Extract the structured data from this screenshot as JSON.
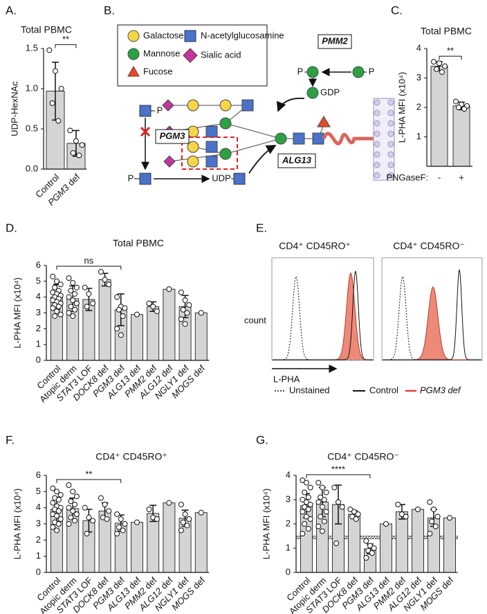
{
  "chart_data": [
    {
      "type": "bar",
      "panel": "A.",
      "title": "Total PBMC",
      "ylabel": "UDP-HexNAc",
      "categories": [
        "Control",
        "PGM3 def"
      ],
      "values": [
        0.97,
        0.32
      ],
      "errors": [
        0.36,
        0.16
      ],
      "points": [
        [
          1.48,
          1.22,
          1.0,
          0.82,
          0.6
        ],
        [
          0.48,
          0.35,
          0.3,
          0.2,
          0.17
        ]
      ],
      "ylim": [
        0,
        1.5
      ],
      "yticks": [
        {
          "value": 0,
          "label": "0.0"
        },
        {
          "value": 0.5,
          "label": "0.5"
        },
        {
          "value": 1,
          "label": "1.0"
        },
        {
          "value": 1.5,
          "label": "1.5"
        }
      ],
      "significance": [
        {
          "between": [
            "Control",
            "PGM3 def"
          ],
          "label": "**"
        }
      ]
    },
    {
      "type": "bar",
      "panel": "C.",
      "title": "Total PBMC",
      "ylabel": "L-PHA MFI (x10⁴)",
      "xlabel": "PNGaseF:",
      "categories": [
        "-",
        "+"
      ],
      "values": [
        3.4,
        2.05
      ],
      "errors": [
        0.15,
        0.13
      ],
      "points": [
        [
          3.55,
          3.5,
          3.4,
          3.3,
          3.2
        ],
        [
          2.2,
          2.1,
          2.05,
          2.0,
          1.95
        ]
      ],
      "ylim": [
        0,
        4
      ],
      "yticks": [
        1,
        2,
        3,
        4
      ],
      "significance": [
        {
          "between": [
            "-",
            "+"
          ],
          "label": "**"
        }
      ]
    },
    {
      "type": "bar",
      "panel": "D.",
      "title": "Total PBMC",
      "ylabel": "L-PHA MFI (x10⁴)",
      "categories": [
        "Control",
        "Atopic derm",
        "STAT3 LOF",
        "DOCK8 def",
        "PGM3 def",
        "ALG13 def",
        "PMM2 def",
        "ALG12 def",
        "NGLY1 def",
        "MOGS def"
      ],
      "values": [
        4.0,
        3.9,
        3.85,
        5.1,
        3.2,
        2.9,
        3.4,
        4.5,
        3.4,
        3.0
      ],
      "errors": [
        0.8,
        0.8,
        0.7,
        0.4,
        1.0,
        null,
        0.3,
        null,
        0.7,
        null
      ],
      "points": [
        [
          5.3,
          5.0,
          4.8,
          4.6,
          4.4,
          4.3,
          4.2,
          4.1,
          4.0,
          3.9,
          3.8,
          3.7,
          3.6,
          3.5,
          3.4,
          3.3,
          3.1,
          2.9,
          2.8
        ],
        [
          5.2,
          4.9,
          4.6,
          4.4,
          4.2,
          4.0,
          3.8,
          3.6,
          3.4,
          3.2,
          3.0,
          2.8
        ],
        [
          4.6,
          4.2,
          3.6,
          3.4
        ],
        [
          5.6,
          5.1,
          4.8
        ],
        [
          4.0,
          3.4,
          3.3,
          3.2,
          2.8,
          2.0,
          1.6
        ],
        [
          2.9
        ],
        [
          3.6,
          3.4,
          3.1
        ],
        [
          4.5
        ],
        [
          4.3,
          3.8,
          3.5,
          3.2,
          3.0,
          2.6,
          2.3
        ],
        [
          3.0
        ]
      ],
      "ylim": [
        0,
        6
      ],
      "yticks": [
        0,
        1,
        2,
        3,
        4,
        5,
        6
      ],
      "significance": [
        {
          "between": [
            "Control",
            "PGM3 def"
          ],
          "label": "ns"
        }
      ]
    },
    {
      "type": "bar",
      "panel": "F.",
      "title": "CD4⁺ CD45RO⁺",
      "ylabel": "L-PHA MFI (x10⁴)",
      "categories": [
        "Control",
        "Atopic derm",
        "STAT3 LOF",
        "DOCK8 def",
        "PGM3 def",
        "ALG13 def",
        "PMM2 def",
        "ALG12 def",
        "NGLY1 def",
        "MOGS def"
      ],
      "values": [
        3.9,
        3.95,
        3.2,
        3.8,
        3.05,
        3.1,
        3.65,
        4.3,
        3.35,
        3.7
      ],
      "errors": [
        0.75,
        0.65,
        0.7,
        0.5,
        0.5,
        null,
        0.5,
        null,
        0.5,
        null
      ],
      "points": [
        [
          5.2,
          5.0,
          4.8,
          4.6,
          4.5,
          4.3,
          4.1,
          4.0,
          3.9,
          3.8,
          3.6,
          3.5,
          3.3,
          3.1,
          3.0,
          2.8,
          2.6
        ],
        [
          5.4,
          5.0,
          4.7,
          4.4,
          4.2,
          4.0,
          3.8,
          3.6,
          3.4,
          3.2,
          3.0
        ],
        [
          4.0,
          3.4,
          3.2,
          2.4
        ],
        [
          4.6,
          4.2,
          3.8,
          3.4,
          3.3
        ],
        [
          3.6,
          3.3,
          3.0,
          2.8,
          2.6,
          2.4
        ],
        [
          3.1
        ],
        [
          3.9,
          3.4,
          3.3
        ],
        [
          4.3
        ],
        [
          4.2,
          3.6,
          3.3,
          3.1,
          2.9,
          2.6
        ],
        [
          3.7
        ]
      ],
      "ylim": [
        0,
        6
      ],
      "yticks": [
        0,
        1,
        2,
        3,
        4,
        5,
        6
      ],
      "significance": [
        {
          "between": [
            "Control",
            "PGM3 def"
          ],
          "label": "**"
        }
      ]
    },
    {
      "type": "bar",
      "panel": "G.",
      "title": "CD4⁺ CD45RO⁻",
      "ylabel": "L-PHA MFI (x10⁴)",
      "categories": [
        "Control",
        "Atopic derm",
        "STAT3 LOF",
        "DOCK8 def",
        "PGM3 def",
        "ALG13 def",
        "PMM2 def",
        "ALG12 def",
        "NGLY1 def",
        "MOGS def"
      ],
      "values": [
        2.75,
        2.9,
        2.8,
        2.4,
        0.97,
        2.0,
        2.5,
        2.6,
        2.25,
        2.25
      ],
      "errors": [
        0.5,
        0.6,
        0.8,
        0.15,
        0.2,
        null,
        0.3,
        null,
        0.35,
        null
      ],
      "points": [
        [
          3.8,
          3.7,
          3.5,
          3.3,
          3.1,
          3.0,
          2.9,
          2.8,
          2.7,
          2.6,
          2.5,
          2.3,
          2.2,
          2.0,
          1.8,
          1.6
        ],
        [
          3.7,
          3.5,
          3.3,
          3.1,
          3.0,
          2.9,
          2.7,
          2.5,
          2.3,
          2.1,
          1.9,
          1.7
        ],
        [
          3.5,
          2.9,
          2.7,
          1.2
        ],
        [
          2.6,
          2.5,
          2.4,
          2.3,
          2.2
        ],
        [
          1.3,
          1.1,
          1.0,
          0.9,
          0.8,
          0.6
        ],
        [
          2.0
        ],
        [
          2.8,
          2.4,
          2.3
        ],
        [
          2.6
        ],
        [
          2.9,
          2.6,
          2.3,
          2.1,
          1.9,
          1.6
        ],
        [
          2.25
        ]
      ],
      "ylim": [
        0,
        4
      ],
      "yticks": [
        0,
        1,
        2,
        3,
        4
      ],
      "band": [
        1.38,
        1.5
      ],
      "significance": [
        {
          "between": [
            "Control",
            "PGM3 def"
          ],
          "label": "****"
        }
      ]
    }
  ],
  "diagram": {
    "panel": "B.",
    "legend": [
      "Galactose",
      "N-acetylglucosamine",
      "Mannose",
      "Sialic acid",
      "Fucose"
    ],
    "labels": [
      "PMM2",
      "P",
      "P",
      "GDP",
      "PGM3",
      "P",
      "P",
      "UDP",
      "ALG13"
    ]
  },
  "flow": {
    "panel": "E.",
    "titles": [
      "CD4⁺ CD45RO⁺",
      "CD4⁺ CD45RO⁻"
    ],
    "ylabel": "count",
    "xlabel": "L-PHA",
    "legend": [
      "Unstained",
      "Control",
      "PGM3 def"
    ]
  }
}
